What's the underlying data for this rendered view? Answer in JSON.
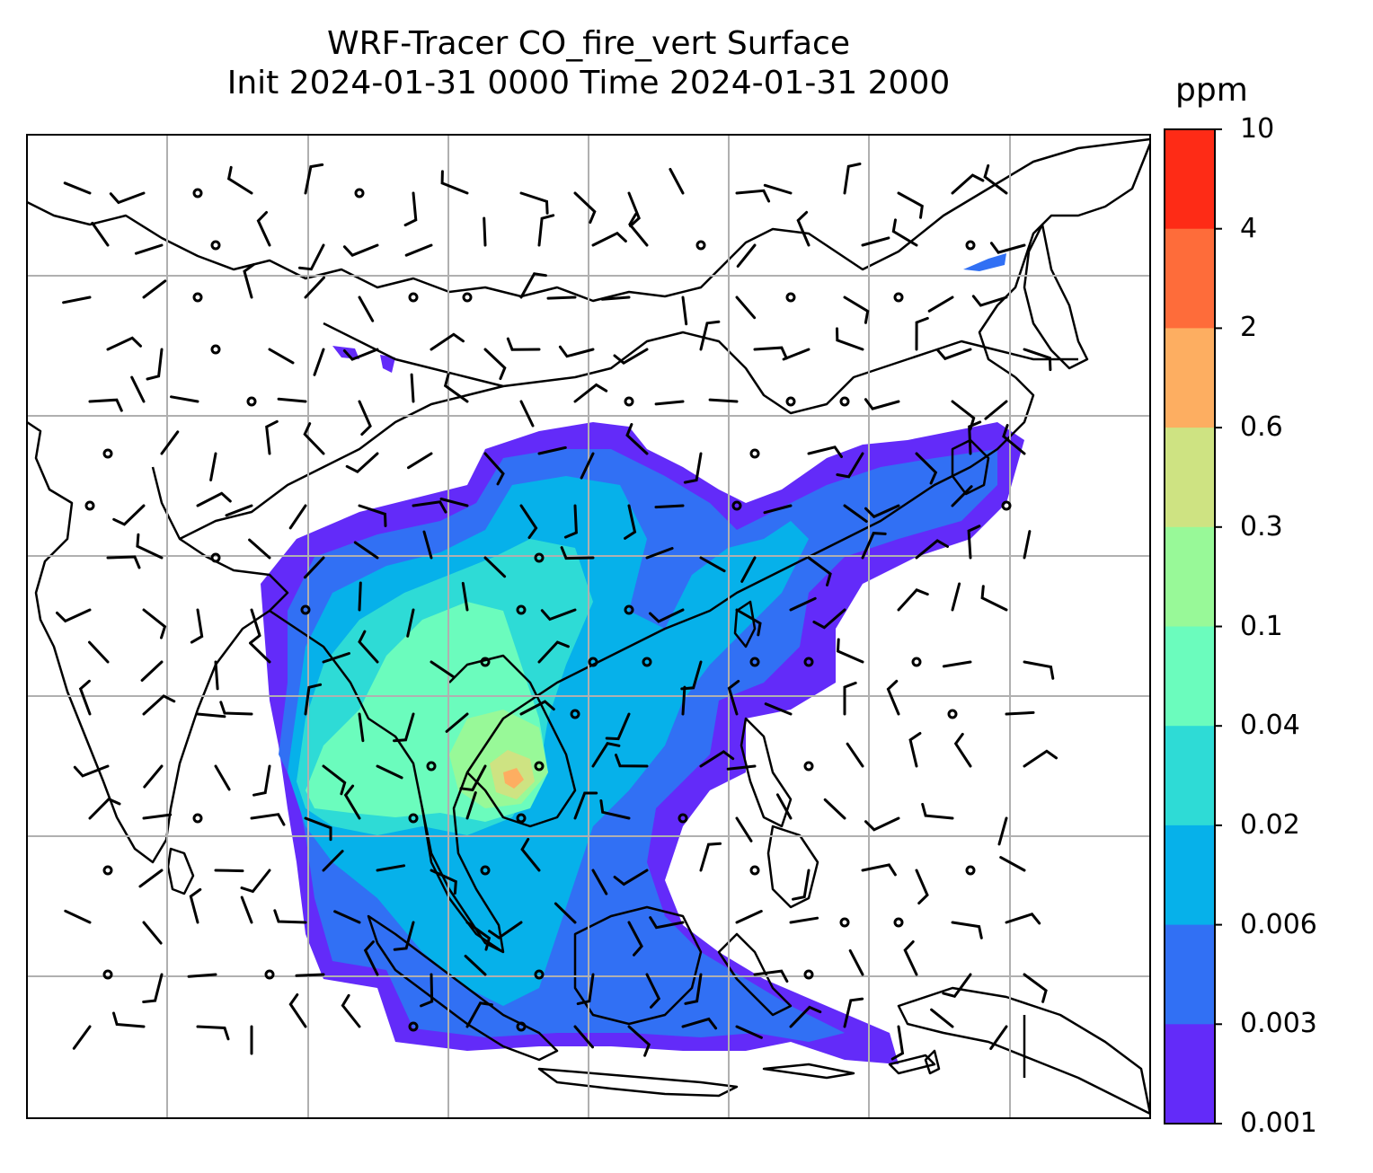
{
  "title": {
    "line1": "WRF-Tracer CO_fire_vert Surface",
    "line2": "Init 2024-01-31 0000 Time 2024-01-31 2000"
  },
  "colorbar": {
    "unit": "ppm",
    "ticks": [
      "10",
      "4",
      "2",
      "0.6",
      "0.3",
      "0.1",
      "0.04",
      "0.02",
      "0.006",
      "0.003",
      "0.001"
    ],
    "colors": [
      "#fe2b16",
      "#fe6c3a",
      "#fdae61",
      "#cee382",
      "#98f998",
      "#6bfcbd",
      "#2edbd6",
      "#06b1ea",
      "#3170f4",
      "#632bf9"
    ]
  },
  "map": {
    "field": "CO_fire_vert",
    "gridlines": true,
    "wind_barbs": true,
    "coastline_color": "#000000",
    "grid_color": "#b0b0b0"
  }
}
